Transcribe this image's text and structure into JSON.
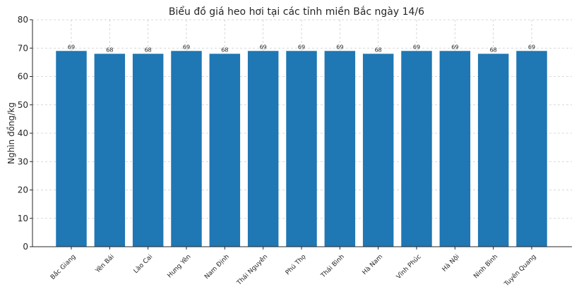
{
  "chart_data": {
    "type": "bar",
    "title": "Biểu đồ giá heo hơi tại các tỉnh miền Bắc ngày 14/6",
    "xlabel": "",
    "ylabel": "Nghìn đồng/kg",
    "categories": [
      "Bắc Giang",
      "Yên Bái",
      "Lào Cai",
      "Hưng Yên",
      "Nam Định",
      "Thái Nguyên",
      "Phú Thọ",
      "Thái Bình",
      "Hà Nam",
      "Vĩnh Phúc",
      "Hà Nội",
      "Ninh Bình",
      "Tuyên Quang"
    ],
    "values": [
      69,
      68,
      68,
      69,
      68,
      69,
      69,
      69,
      68,
      69,
      69,
      68,
      69
    ],
    "ylim": [
      0,
      80
    ],
    "yticks": [
      0,
      10,
      20,
      30,
      40,
      50,
      60,
      70,
      80
    ],
    "grid": true,
    "bar_color": "#1f77b4",
    "data_labels": true
  }
}
